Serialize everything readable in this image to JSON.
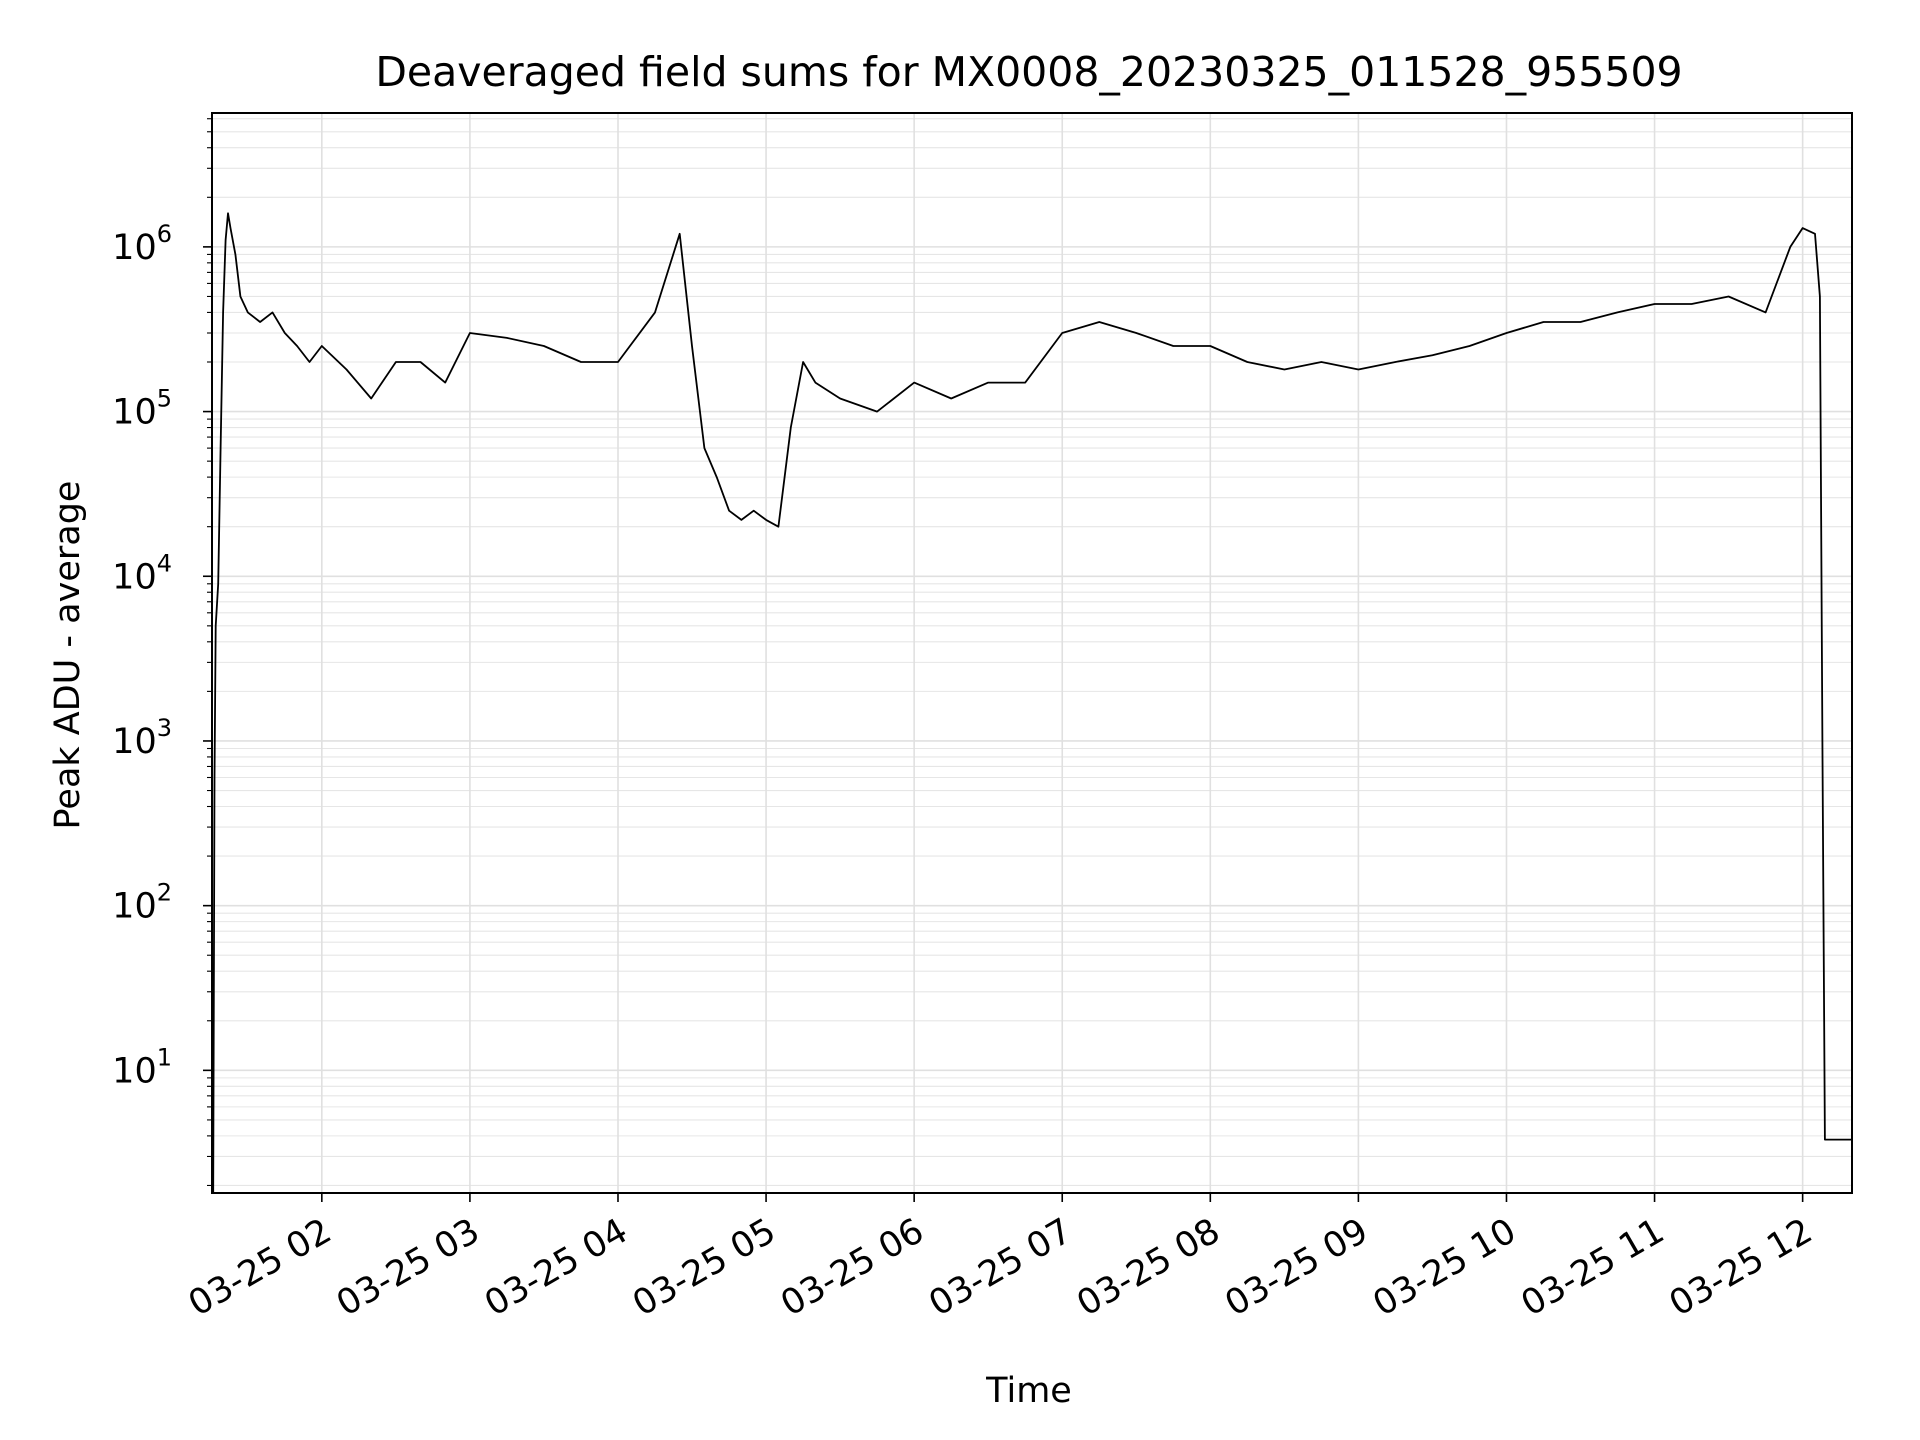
{
  "chart_data": {
    "type": "line",
    "title": "Deaveraged field sums for MX0008_20230325_011528_955509",
    "xlabel": "Time",
    "ylabel": "Peak ADU - average",
    "yscale": "log",
    "ylim": [
      1.8,
      6500000
    ],
    "xlim": [
      "2023-03-25T01:15:30",
      "2023-03-25T12:20:00"
    ],
    "xticks": [
      {
        "t": "2023-03-25T02:00:00",
        "label": "03-25 02"
      },
      {
        "t": "2023-03-25T03:00:00",
        "label": "03-25 03"
      },
      {
        "t": "2023-03-25T04:00:00",
        "label": "03-25 04"
      },
      {
        "t": "2023-03-25T05:00:00",
        "label": "03-25 05"
      },
      {
        "t": "2023-03-25T06:00:00",
        "label": "03-25 06"
      },
      {
        "t": "2023-03-25T07:00:00",
        "label": "03-25 07"
      },
      {
        "t": "2023-03-25T08:00:00",
        "label": "03-25 08"
      },
      {
        "t": "2023-03-25T09:00:00",
        "label": "03-25 09"
      },
      {
        "t": "2023-03-25T10:00:00",
        "label": "03-25 10"
      },
      {
        "t": "2023-03-25T11:00:00",
        "label": "03-25 11"
      },
      {
        "t": "2023-03-25T12:00:00",
        "label": "03-25 12"
      }
    ],
    "yticks": [
      {
        "value": 10,
        "base": "10",
        "exp": "1"
      },
      {
        "value": 100,
        "base": "10",
        "exp": "2"
      },
      {
        "value": 1000,
        "base": "10",
        "exp": "3"
      },
      {
        "value": 10000,
        "base": "10",
        "exp": "4"
      },
      {
        "value": 100000,
        "base": "10",
        "exp": "5"
      },
      {
        "value": 1000000,
        "base": "10",
        "exp": "6"
      }
    ],
    "grid": true,
    "line_color": "#000000",
    "series": [
      {
        "x": [
          "2023-03-25T01:15:30",
          "2023-03-25T01:16:00",
          "2023-03-25T01:16:30",
          "2023-03-25T01:17:00",
          "2023-03-25T01:18:00",
          "2023-03-25T01:19:00",
          "2023-03-25T01:20:00",
          "2023-03-25T01:21:00",
          "2023-03-25T01:22:00",
          "2023-03-25T01:23:00",
          "2023-03-25T01:25:00",
          "2023-03-25T01:27:00",
          "2023-03-25T01:30:00",
          "2023-03-25T01:35:00",
          "2023-03-25T01:40:00",
          "2023-03-25T01:45:00",
          "2023-03-25T01:50:00",
          "2023-03-25T01:55:00",
          "2023-03-25T02:00:00",
          "2023-03-25T02:10:00",
          "2023-03-25T02:20:00",
          "2023-03-25T02:30:00",
          "2023-03-25T02:40:00",
          "2023-03-25T02:50:00",
          "2023-03-25T03:00:00",
          "2023-03-25T03:15:00",
          "2023-03-25T03:30:00",
          "2023-03-25T03:45:00",
          "2023-03-25T04:00:00",
          "2023-03-25T04:15:00",
          "2023-03-25T04:25:00",
          "2023-03-25T04:30:00",
          "2023-03-25T04:35:00",
          "2023-03-25T04:40:00",
          "2023-03-25T04:45:00",
          "2023-03-25T04:50:00",
          "2023-03-25T04:55:00",
          "2023-03-25T05:00:00",
          "2023-03-25T05:05:00",
          "2023-03-25T05:10:00",
          "2023-03-25T05:15:00",
          "2023-03-25T05:20:00",
          "2023-03-25T05:30:00",
          "2023-03-25T05:45:00",
          "2023-03-25T06:00:00",
          "2023-03-25T06:15:00",
          "2023-03-25T06:30:00",
          "2023-03-25T06:45:00",
          "2023-03-25T07:00:00",
          "2023-03-25T07:15:00",
          "2023-03-25T07:30:00",
          "2023-03-25T07:45:00",
          "2023-03-25T08:00:00",
          "2023-03-25T08:15:00",
          "2023-03-25T08:30:00",
          "2023-03-25T08:45:00",
          "2023-03-25T09:00:00",
          "2023-03-25T09:15:00",
          "2023-03-25T09:30:00",
          "2023-03-25T09:45:00",
          "2023-03-25T10:00:00",
          "2023-03-25T10:15:00",
          "2023-03-25T10:30:00",
          "2023-03-25T10:45:00",
          "2023-03-25T11:00:00",
          "2023-03-25T11:15:00",
          "2023-03-25T11:30:00",
          "2023-03-25T11:45:00",
          "2023-03-25T11:55:00",
          "2023-03-25T12:00:00",
          "2023-03-25T12:05:00",
          "2023-03-25T12:07:00",
          "2023-03-25T12:08:00",
          "2023-03-25T12:09:00",
          "2023-03-25T12:10:00",
          "2023-03-25T12:11:00",
          "2023-03-25T12:20:00"
        ],
        "y": [
          1.8,
          1.8,
          600,
          5000,
          9000,
          60000,
          400000,
          1100000,
          1600000,
          1300000,
          900000,
          500000,
          400000,
          350000,
          400000,
          300000,
          250000,
          200000,
          250000,
          180000,
          120000,
          200000,
          200000,
          150000,
          300000,
          280000,
          250000,
          200000,
          200000,
          400000,
          1200000,
          250000,
          60000,
          40000,
          25000,
          22000,
          25000,
          22000,
          20000,
          80000,
          200000,
          150000,
          120000,
          100000,
          150000,
          120000,
          150000,
          150000,
          300000,
          350000,
          300000,
          250000,
          250000,
          200000,
          180000,
          200000,
          180000,
          200000,
          220000,
          250000,
          300000,
          350000,
          350000,
          400000,
          450000,
          450000,
          500000,
          400000,
          1000000,
          1300000,
          1200000,
          500000,
          1000,
          3.8,
          3.8,
          3.8,
          3.8
        ]
      }
    ]
  }
}
